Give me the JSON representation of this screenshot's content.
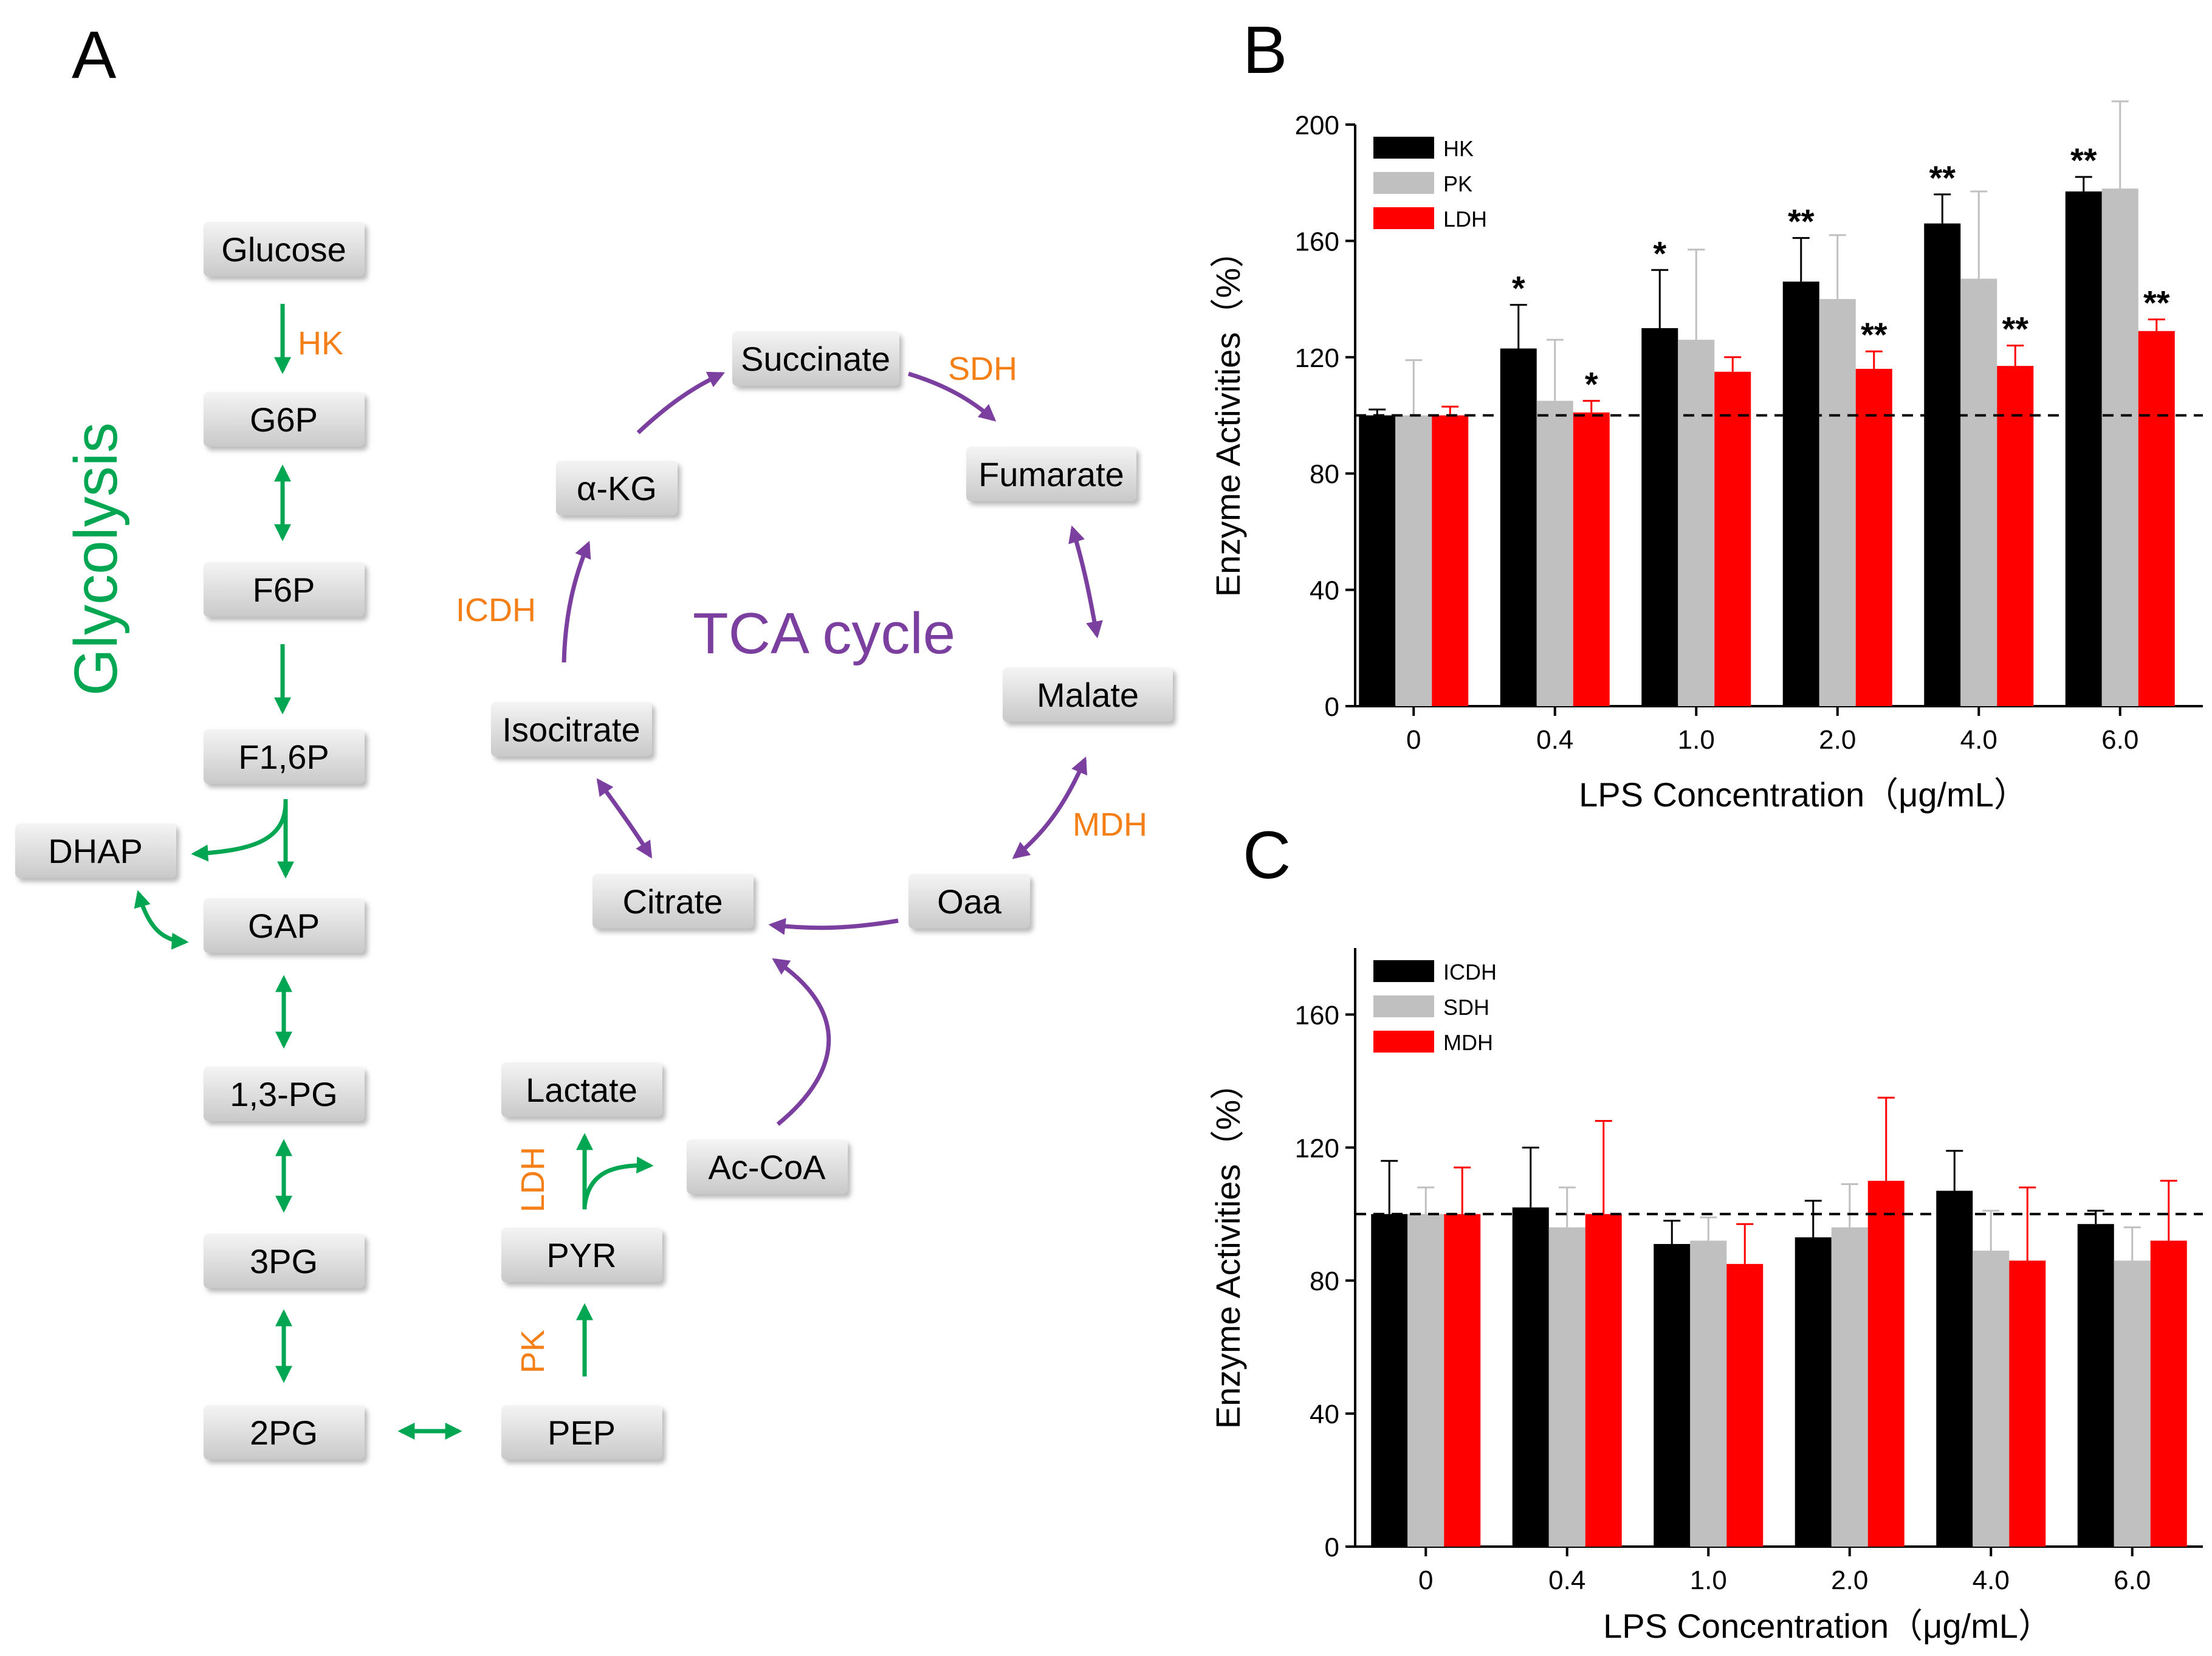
{
  "panels": {
    "a": "A",
    "b": "B",
    "c": "C"
  },
  "diagram": {
    "glycolysis_label": "Glycolysis",
    "tca_label": "TCA cycle",
    "nodes": {
      "glucose": "Glucose",
      "g6p": "G6P",
      "f6p": "F6P",
      "f16p": "F1,6P",
      "dhap": "DHAP",
      "gap": "GAP",
      "pg13": "1,3-PG",
      "pg3": "3PG",
      "pg2": "2PG",
      "pep": "PEP",
      "pyr": "PYR",
      "lactate": "Lactate",
      "acoa": "Ac-CoA",
      "citrate": "Citrate",
      "isocitrate": "Isocitrate",
      "akg": "α-KG",
      "succinate": "Succinate",
      "fumarate": "Fumarate",
      "malate": "Malate",
      "oaa": "Oaa"
    },
    "enzymes": {
      "hk": "HK",
      "sdh": "SDH",
      "icdh": "ICDH",
      "mdh": "MDH",
      "ldh": "LDH",
      "pk": "PK"
    }
  },
  "colors": {
    "black": "#000000",
    "gray": "#c0c0c0",
    "red": "#ff0000",
    "green": "#00a651",
    "purple": "#7b3fa0",
    "orange": "#f57f17"
  },
  "chart_data": [
    {
      "type": "bar",
      "panel": "B",
      "categories": [
        "0",
        "0.4",
        "1.0",
        "2.0",
        "4.0",
        "6.0"
      ],
      "series": [
        {
          "name": "HK",
          "color": "#000000",
          "values": [
            100,
            123,
            130,
            146,
            166,
            177
          ],
          "errors": [
            2,
            15,
            20,
            15,
            10,
            5
          ],
          "stars": [
            "",
            "*",
            "*",
            "**",
            "**",
            "**"
          ]
        },
        {
          "name": "PK",
          "color": "#c0c0c0",
          "values": [
            100,
            105,
            126,
            140,
            147,
            178
          ],
          "errors": [
            19,
            21,
            31,
            22,
            30,
            30
          ],
          "stars": [
            "",
            "",
            "",
            "",
            "",
            ""
          ]
        },
        {
          "name": "LDH",
          "color": "#ff0000",
          "values": [
            100,
            101,
            115,
            116,
            117,
            129
          ],
          "errors": [
            3,
            4,
            5,
            6,
            7,
            4
          ],
          "stars": [
            "",
            "*",
            "",
            "**",
            "**",
            "**"
          ]
        }
      ],
      "yticks": [
        "0",
        "40",
        "80",
        "120",
        "160",
        "200"
      ],
      "ylim": [
        0,
        200
      ],
      "reference_line": 100,
      "xlabel": "LPS Concentration（μg/mL）",
      "ylabel": "Enzyme Activities（%）",
      "legend_position": "top-left"
    },
    {
      "type": "bar",
      "panel": "C",
      "categories": [
        "0",
        "0.4",
        "1.0",
        "2.0",
        "4.0",
        "6.0"
      ],
      "series": [
        {
          "name": "ICDH",
          "color": "#000000",
          "values": [
            100,
            102,
            91,
            93,
            107,
            97
          ],
          "errors": [
            16,
            18,
            7,
            11,
            12,
            4
          ],
          "stars": [
            "",
            "",
            "",
            "",
            "",
            ""
          ]
        },
        {
          "name": "SDH",
          "color": "#c0c0c0",
          "values": [
            100,
            96,
            92,
            96,
            89,
            86
          ],
          "errors": [
            8,
            12,
            7,
            13,
            12,
            10
          ],
          "stars": [
            "",
            "",
            "",
            "",
            "",
            ""
          ]
        },
        {
          "name": "MDH",
          "color": "#ff0000",
          "values": [
            100,
            100,
            85,
            110,
            86,
            92
          ],
          "errors": [
            14,
            28,
            12,
            25,
            22,
            18
          ],
          "stars": [
            "",
            "",
            "",
            "",
            "",
            ""
          ]
        }
      ],
      "yticks": [
        "0",
        "40",
        "80",
        "120",
        "160"
      ],
      "ylim": [
        0,
        180
      ],
      "reference_line": 100,
      "xlabel": "LPS Concentration（μg/mL）",
      "ylabel": "Enzyme Activities（%）",
      "legend_position": "top-left"
    }
  ]
}
